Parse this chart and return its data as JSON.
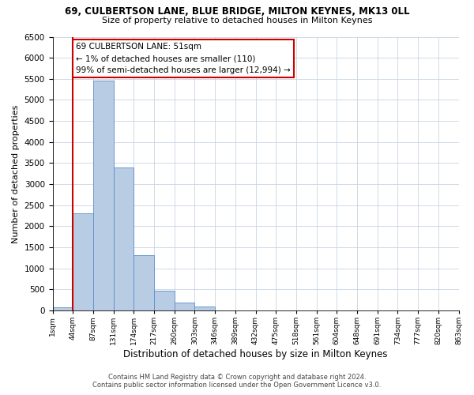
{
  "title": "69, CULBERTSON LANE, BLUE BRIDGE, MILTON KEYNES, MK13 0LL",
  "subtitle": "Size of property relative to detached houses in Milton Keynes",
  "xlabel": "Distribution of detached houses by size in Milton Keynes",
  "ylabel": "Number of detached properties",
  "bar_color": "#b8cce4",
  "bar_edge_color": "#5b8fc9",
  "background_color": "#ffffff",
  "grid_color": "#c8d4e4",
  "bin_labels": [
    "1sqm",
    "44sqm",
    "87sqm",
    "131sqm",
    "174sqm",
    "217sqm",
    "260sqm",
    "303sqm",
    "346sqm",
    "389sqm",
    "432sqm",
    "475sqm",
    "518sqm",
    "561sqm",
    "604sqm",
    "648sqm",
    "691sqm",
    "734sqm",
    "777sqm",
    "820sqm",
    "863sqm"
  ],
  "bar_heights": [
    70,
    2300,
    5450,
    3400,
    1320,
    480,
    190,
    90,
    0,
    0,
    0,
    0,
    0,
    0,
    0,
    0,
    0,
    0,
    0,
    0
  ],
  "ylim": [
    0,
    6500
  ],
  "yticks": [
    0,
    500,
    1000,
    1500,
    2000,
    2500,
    3000,
    3500,
    4000,
    4500,
    5000,
    5500,
    6000,
    6500
  ],
  "annotation_title": "69 CULBERTSON LANE: 51sqm",
  "annotation_line1": "← 1% of detached houses are smaller (110)",
  "annotation_line2": "99% of semi-detached houses are larger (12,994) →",
  "annotation_box_color": "#ffffff",
  "annotation_box_edge_color": "#cc0000",
  "property_line_color": "#cc0000",
  "footer_line1": "Contains HM Land Registry data © Crown copyright and database right 2024.",
  "footer_line2": "Contains public sector information licensed under the Open Government Licence v3.0."
}
